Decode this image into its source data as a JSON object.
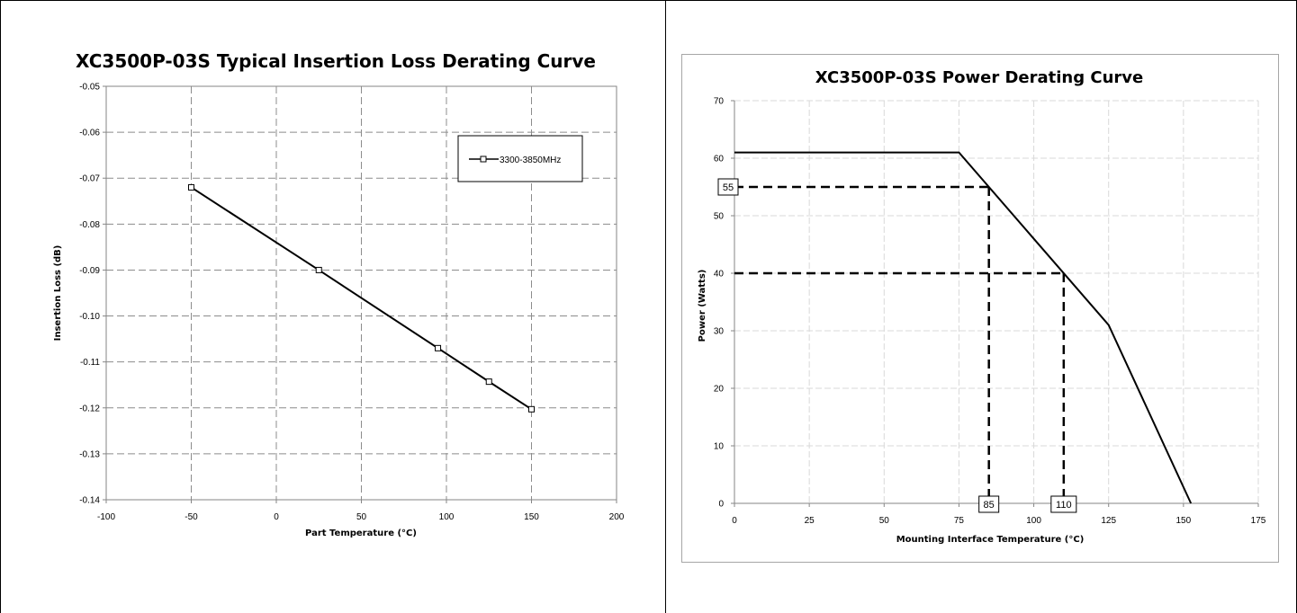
{
  "chart_data": [
    {
      "type": "line",
      "title": "XC3500P-03S Typical Insertion Loss Derating Curve",
      "xlabel": "Part Temperature (°C)",
      "ylabel": "Insertion Loss (dB)",
      "xlim": [
        -100,
        200
      ],
      "ylim": [
        -0.14,
        -0.05
      ],
      "x_ticks": [
        "-100",
        "-50",
        "0",
        "50",
        "100",
        "150",
        "200"
      ],
      "y_ticks": [
        "-0.05",
        "-0.06",
        "-0.07",
        "-0.08",
        "-0.09",
        "-0.10",
        "-0.11",
        "-0.12",
        "-0.13",
        "-0.14"
      ],
      "grid": true,
      "legend_position": "top-right",
      "series": [
        {
          "name": "3300-3850MHz",
          "marker": "square",
          "color": "#000000",
          "x": [
            -50,
            25,
            95,
            125,
            150
          ],
          "y": [
            -0.072,
            -0.09,
            -0.107,
            -0.1143,
            -0.1203
          ]
        }
      ]
    },
    {
      "type": "line",
      "title": "XC3500P-03S Power Derating Curve",
      "xlabel": "Mounting Interface Temperature (°C)",
      "ylabel": "Power (Watts)",
      "xlim": [
        0,
        175
      ],
      "ylim": [
        0,
        70
      ],
      "x_ticks": [
        "0",
        "25",
        "50",
        "75",
        "100",
        "125",
        "150",
        "175"
      ],
      "y_ticks": [
        "0",
        "10",
        "20",
        "30",
        "40",
        "50",
        "60",
        "70"
      ],
      "grid": true,
      "series": [
        {
          "color": "#000000",
          "x": [
            0,
            75,
            125,
            152.5
          ],
          "y": [
            61,
            61,
            31,
            0
          ]
        }
      ],
      "reference_lines": [
        {
          "x": 85,
          "y": 55
        },
        {
          "x": 110,
          "y": 40
        }
      ],
      "callouts": {
        "y_value": "55",
        "x_values": [
          "85",
          "110"
        ]
      }
    }
  ]
}
